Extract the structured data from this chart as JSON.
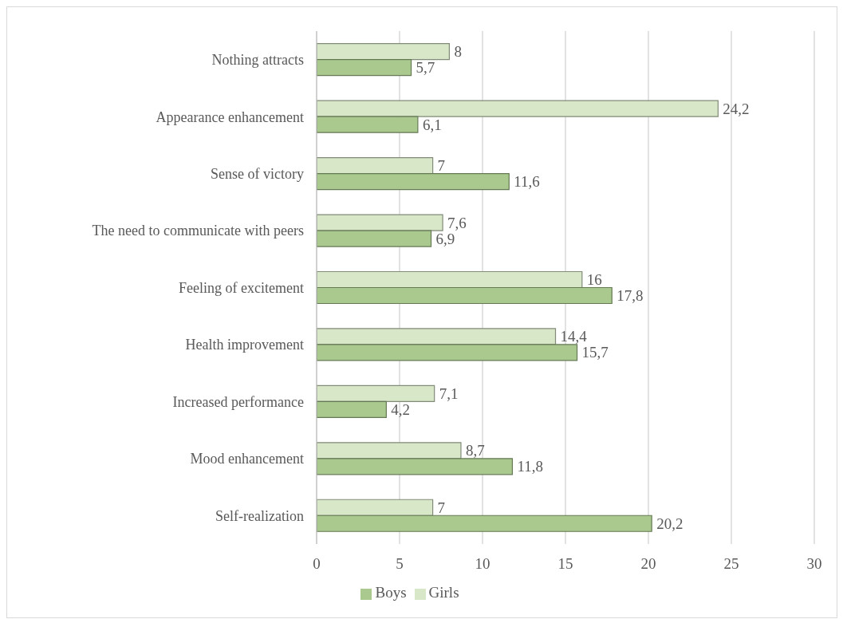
{
  "chart_data": {
    "type": "bar",
    "orientation": "horizontal",
    "categories": [
      "Nothing attracts",
      "Appearance enhancement",
      "Sense of victory",
      "The need to communicate with peers",
      "Feeling of excitement",
      "Health improvement",
      "Increased performance",
      "Mood enhancement",
      "Self-realization"
    ],
    "series": [
      {
        "name": "Girls",
        "color": "#d7e7c8",
        "values": [
          8,
          24.2,
          7,
          7.6,
          16,
          14.4,
          7.1,
          8.7,
          7
        ],
        "value_labels": [
          "8",
          "24,2",
          "7",
          "7,6",
          "16",
          "14,4",
          "7,1",
          "8,7",
          "7"
        ]
      },
      {
        "name": "Boys",
        "color": "#aac98e",
        "values": [
          5.7,
          6.1,
          11.6,
          6.9,
          17.8,
          15.7,
          4.2,
          11.8,
          20.2
        ],
        "value_labels": [
          "5,7",
          "6,1",
          "11,6",
          "6,9",
          "17,8",
          "15,7",
          "4,2",
          "11,8",
          "20,2"
        ]
      }
    ],
    "xlim": [
      0,
      30
    ],
    "xticks": [
      0,
      5,
      10,
      15,
      20,
      25,
      30
    ],
    "grid": "x",
    "legend": "bottom"
  }
}
